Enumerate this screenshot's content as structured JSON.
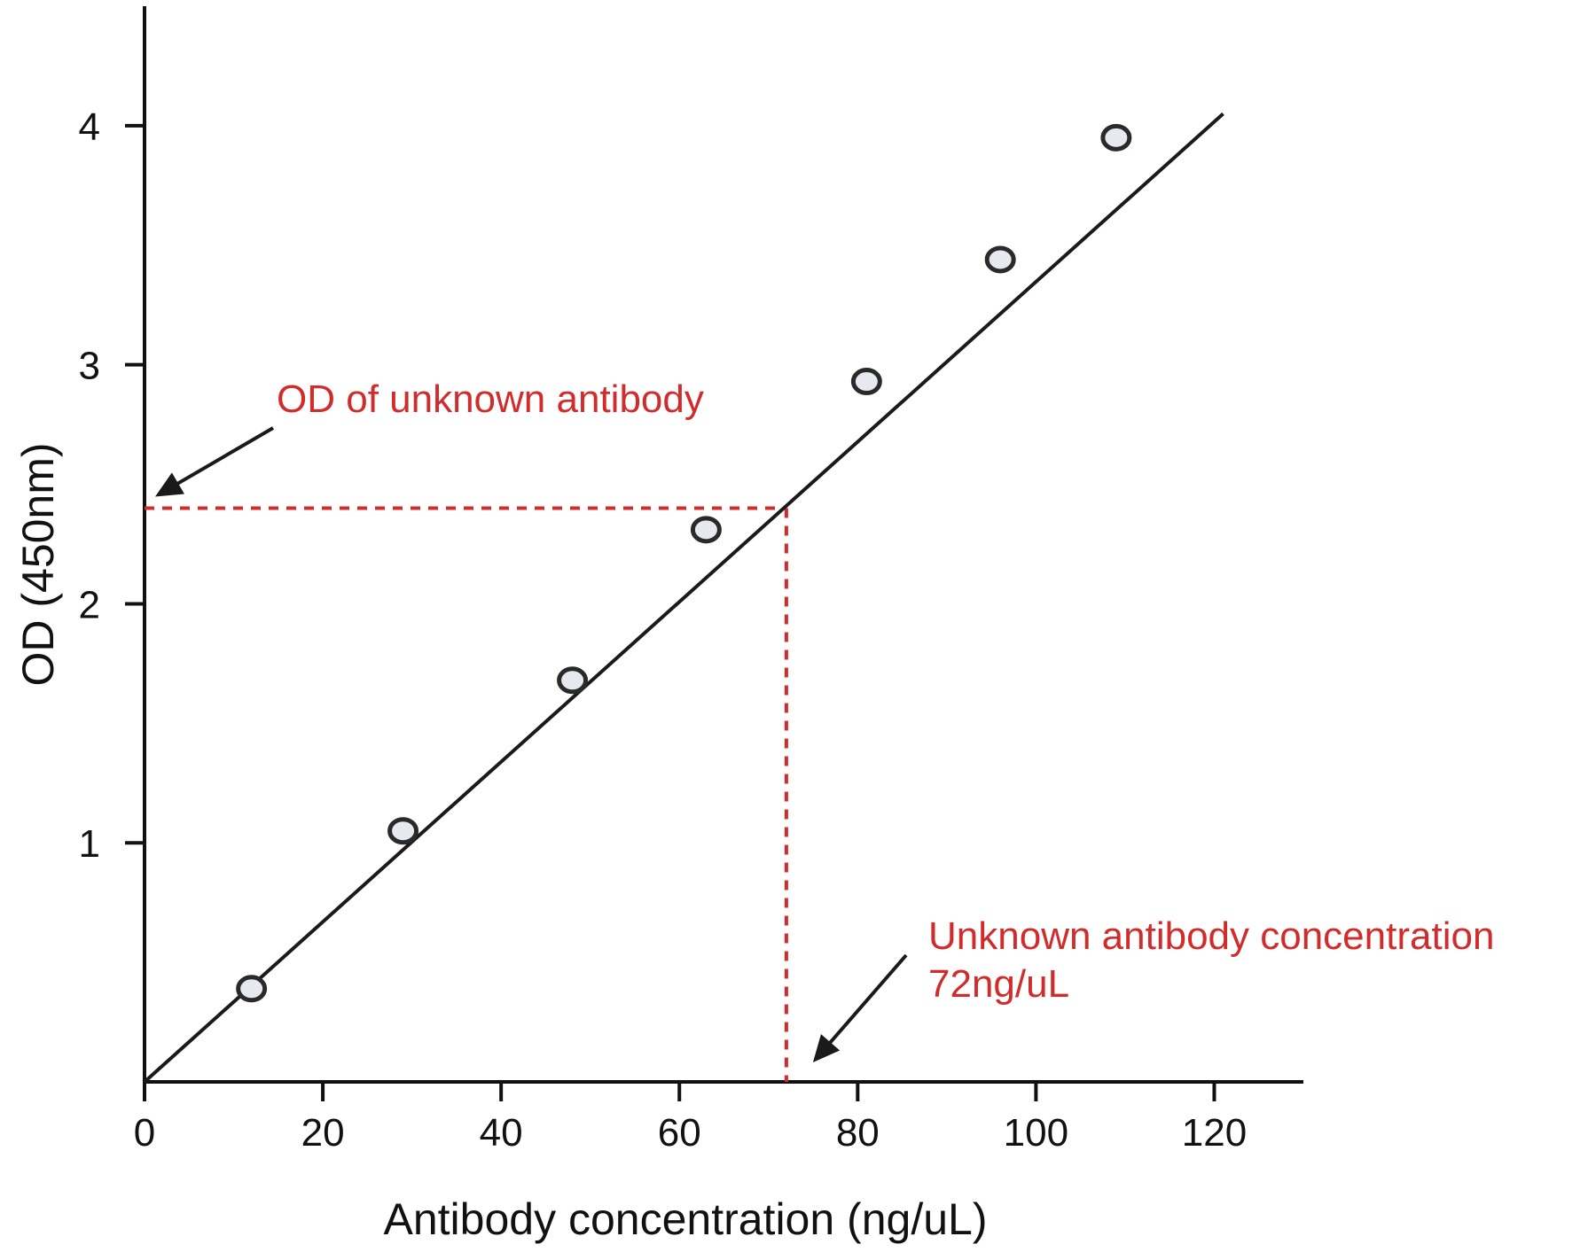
{
  "chart_data": {
    "type": "scatter",
    "title": "",
    "xlabel": "Antibody concentration (ng/uL)",
    "ylabel": "OD (450nm)",
    "xlim": [
      0,
      130
    ],
    "ylim": [
      0,
      4.5
    ],
    "x_ticks": [
      0,
      20,
      40,
      60,
      80,
      100,
      120
    ],
    "y_ticks": [
      1,
      2,
      3,
      4
    ],
    "grid": false,
    "legend": "none",
    "points": [
      {
        "x": 12,
        "y": 0.39
      },
      {
        "x": 29,
        "y": 1.05
      },
      {
        "x": 48,
        "y": 1.68
      },
      {
        "x": 63,
        "y": 2.31
      },
      {
        "x": 81,
        "y": 2.93
      },
      {
        "x": 96,
        "y": 3.44
      },
      {
        "x": 109,
        "y": 3.95
      }
    ],
    "fit_line": {
      "x": [
        0,
        121
      ],
      "y": [
        0,
        4.05
      ]
    },
    "unknown": {
      "x": 72,
      "y": 2.4
    },
    "annotations": {
      "od_unknown": "OD of unknown antibody",
      "conc_unknown_line1": "Unknown antibody concentration",
      "conc_unknown_line2": "72ng/uL"
    },
    "colors": {
      "annotation": "#d12c2c",
      "axis": "#111111",
      "marker_fill": "#e6e9ef",
      "marker_edge": "#2a2a2a"
    }
  }
}
